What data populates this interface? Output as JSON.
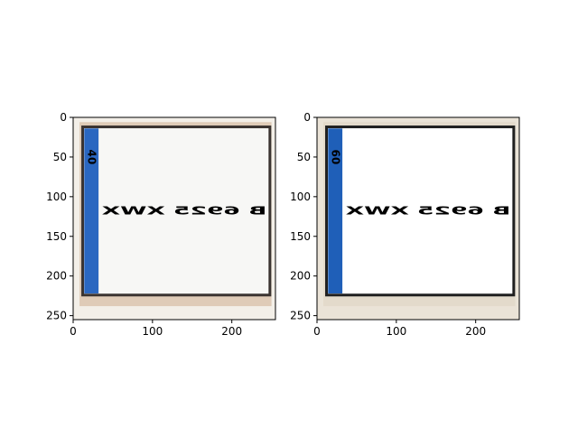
{
  "chart_data": [
    {
      "type": "image",
      "image": {
        "plate_text": "B 6925 XWX",
        "badge_text": "40",
        "colors": {
          "background": "#f3efe8",
          "plate": "#f7f7f5",
          "border": "#3a3330",
          "badge": "#2b67c0",
          "frame": "#b98a5b"
        }
      },
      "x_axis": {
        "range": [
          0,
          255
        ],
        "ticks": [
          0,
          100,
          200
        ],
        "tick_labels": [
          "0",
          "100",
          "200"
        ]
      },
      "y_axis": {
        "range": [
          0,
          255
        ],
        "inverted": true,
        "ticks": [
          0,
          50,
          100,
          150,
          200,
          250
        ],
        "tick_labels": [
          "0",
          "50",
          "100",
          "150",
          "200",
          "250"
        ]
      }
    },
    {
      "type": "image",
      "image": {
        "plate_text": "B 6925 XWX",
        "badge_text": "60",
        "colors": {
          "background": "#eae3d7",
          "plate": "#ffffff",
          "border": "#1f1f1f",
          "badge": "#1f5fb8",
          "frame": "#d7c9b5"
        }
      },
      "x_axis": {
        "range": [
          0,
          255
        ],
        "ticks": [
          0,
          100,
          200
        ],
        "tick_labels": [
          "0",
          "100",
          "200"
        ]
      },
      "y_axis": {
        "range": [
          0,
          255
        ],
        "inverted": true,
        "ticks": [
          0,
          50,
          100,
          150,
          200,
          250
        ],
        "tick_labels": [
          "0",
          "50",
          "100",
          "150",
          "200",
          "250"
        ]
      }
    }
  ]
}
